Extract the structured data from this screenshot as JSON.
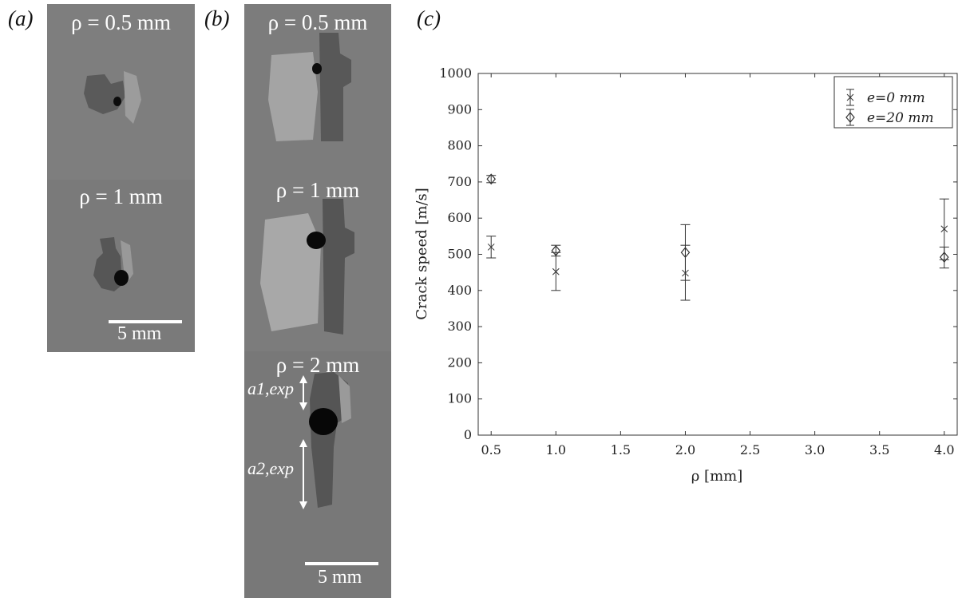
{
  "panels": {
    "a": {
      "label": "(a)",
      "top_title": "ρ = 0.5 mm",
      "bottom_title": "ρ = 1 mm",
      "scale_label": "5 mm"
    },
    "b": {
      "label": "(b)",
      "titles": [
        "ρ = 0.5 mm",
        "ρ = 1 mm",
        "ρ = 2 mm"
      ],
      "scale_label": "5 mm",
      "annotation_1": "a1,exp",
      "annotation_2": "a2,exp"
    },
    "c": {
      "label": "(c)"
    }
  },
  "chart_data": {
    "type": "scatter",
    "xlabel": "ρ  [mm]",
    "ylabel": "Crack  speed  [m/s]",
    "xlim": [
      0.4,
      4.1
    ],
    "ylim": [
      0,
      1000
    ],
    "xticks": [
      0.5,
      1.0,
      1.5,
      2.0,
      2.5,
      3.0,
      3.5,
      4.0
    ],
    "xtick_labels": [
      "0.5",
      "1.0",
      "1.5",
      "2.0",
      "2.5",
      "3.0",
      "3.5",
      "4.0"
    ],
    "yticks": [
      0,
      100,
      200,
      300,
      400,
      500,
      600,
      700,
      800,
      900,
      1000
    ],
    "ytick_labels": [
      "0",
      "100",
      "200",
      "300",
      "400",
      "500",
      "600",
      "700",
      "800",
      "900",
      "1000"
    ],
    "grid": false,
    "legend_position": "top-right",
    "series": [
      {
        "name": "e=0 mm",
        "marker": "x",
        "points": [
          {
            "x": 0.5,
            "y": 520,
            "err_low": 490,
            "err_high": 550
          },
          {
            "x": 1.0,
            "y": 452,
            "err_low": 400,
            "err_high": 505
          },
          {
            "x": 2.0,
            "y": 448,
            "err_low": 373,
            "err_high": 525
          },
          {
            "x": 4.0,
            "y": 570,
            "err_low": 485,
            "err_high": 653
          }
        ]
      },
      {
        "name": "e=20 mm",
        "marker": "diamond",
        "points": [
          {
            "x": 0.5,
            "y": 708,
            "err_low": 698,
            "err_high": 718
          },
          {
            "x": 1.0,
            "y": 510,
            "err_low": 495,
            "err_high": 525
          },
          {
            "x": 2.0,
            "y": 505,
            "err_low": 428,
            "err_high": 582
          },
          {
            "x": 4.0,
            "y": 492,
            "err_low": 462,
            "err_high": 520
          }
        ]
      }
    ]
  }
}
